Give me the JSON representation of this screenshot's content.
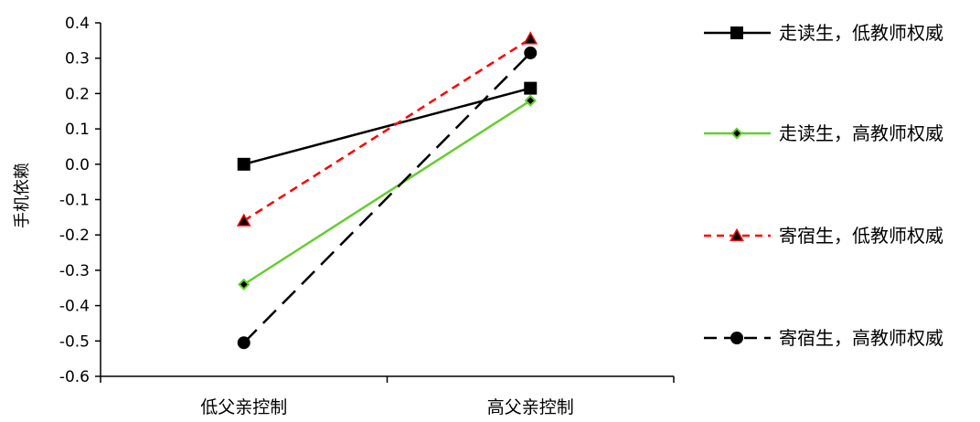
{
  "chart_data": {
    "type": "line",
    "categories": [
      "低父亲控制",
      "高父亲控制"
    ],
    "ylabel": "手机依赖",
    "xlabel": "",
    "ylim": [
      -0.6,
      0.4
    ],
    "yticks": [
      "0.4",
      "0.3",
      "0.2",
      "0.1",
      "0.0",
      "-0.1",
      "-0.2",
      "-0.3",
      "-0.4",
      "-0.5",
      "-0.6"
    ],
    "grid": false,
    "legend_position": "right",
    "series": [
      {
        "name": "走读生，低教师权威",
        "values": [
          0.0,
          0.215
        ],
        "color": "#000000",
        "dash": "solid",
        "marker": "square"
      },
      {
        "name": "走读生，高教师权威",
        "values": [
          -0.34,
          0.18
        ],
        "color": "#66cc33",
        "dash": "solid",
        "marker": "diamond"
      },
      {
        "name": "寄宿生，低教师权威",
        "values": [
          -0.16,
          0.355
        ],
        "color": "#ff0000",
        "dash": "short-dash",
        "marker": "triangle"
      },
      {
        "name": "寄宿生，高教师权威",
        "values": [
          -0.505,
          0.315
        ],
        "color": "#000000",
        "dash": "long-dash",
        "marker": "circle"
      }
    ]
  }
}
